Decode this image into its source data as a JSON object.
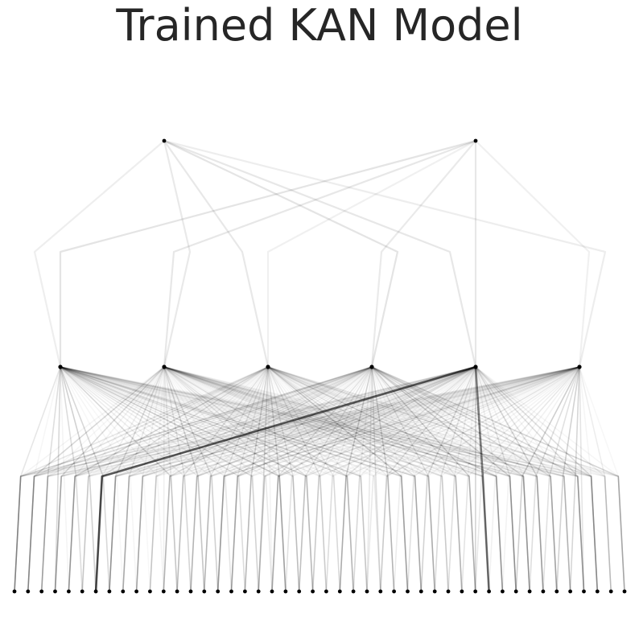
{
  "title": "Trained KAN Model",
  "network": {
    "layers": [
      46,
      6,
      2
    ],
    "node_color": "#000000",
    "edge_color": "#000000",
    "background": "#ffffff",
    "strong_edges": [
      {
        "from_layer": 0,
        "from": 6,
        "to": 4,
        "strength": 0.65
      },
      {
        "from_layer": 0,
        "from": 35,
        "to": 4,
        "strength": 0.5
      }
    ]
  }
}
